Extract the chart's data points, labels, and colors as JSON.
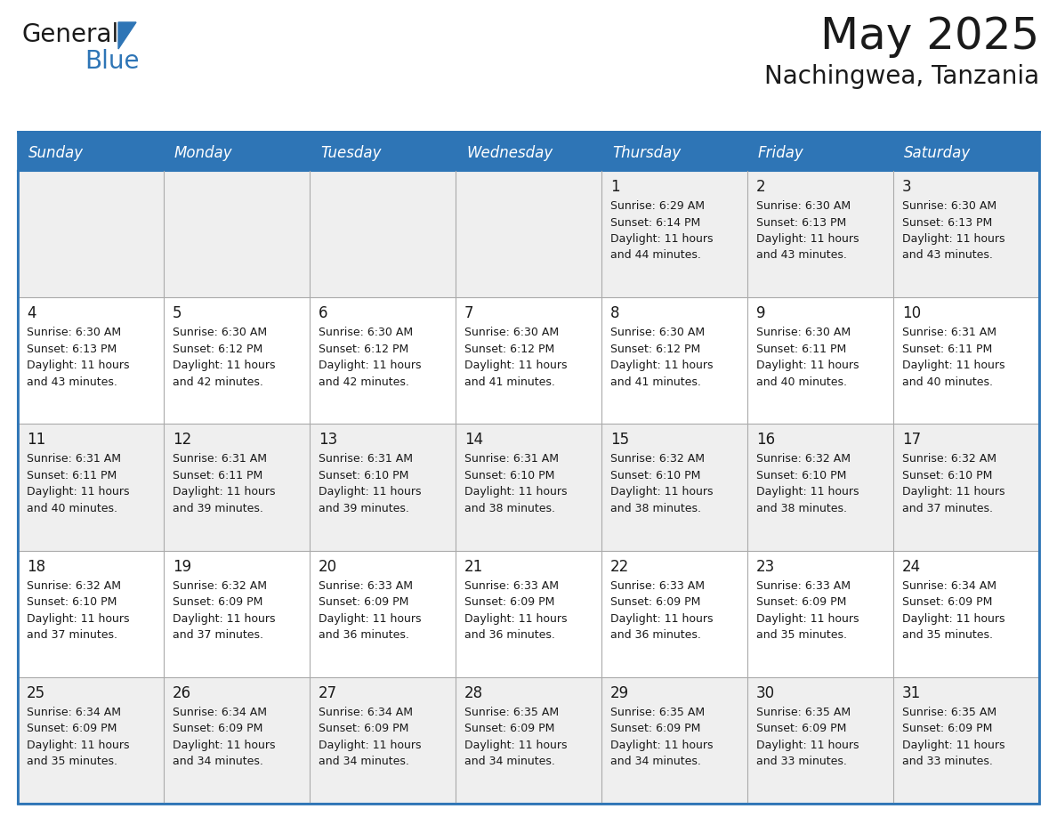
{
  "title": "May 2025",
  "subtitle": "Nachingwea, Tanzania",
  "header_bg": "#2E75B6",
  "header_text_color": "#FFFFFF",
  "cell_bg_row0": "#EFEFEF",
  "cell_bg_row1": "#FFFFFF",
  "cell_bg_row2": "#EFEFEF",
  "cell_bg_row3": "#FFFFFF",
  "cell_bg_row4": "#EFEFEF",
  "cell_border_color": "#2E75B6",
  "grid_line_color": "#AAAAAA",
  "day_headers": [
    "Sunday",
    "Monday",
    "Tuesday",
    "Wednesday",
    "Thursday",
    "Friday",
    "Saturday"
  ],
  "title_color": "#1a1a1a",
  "subtitle_color": "#1a1a1a",
  "day_number_color": "#1a1a1a",
  "cell_text_color": "#1a1a1a",
  "calendar": [
    [
      {
        "day": null,
        "sunrise": null,
        "sunset": null,
        "daylight_h": null,
        "daylight_m": null
      },
      {
        "day": null,
        "sunrise": null,
        "sunset": null,
        "daylight_h": null,
        "daylight_m": null
      },
      {
        "day": null,
        "sunrise": null,
        "sunset": null,
        "daylight_h": null,
        "daylight_m": null
      },
      {
        "day": null,
        "sunrise": null,
        "sunset": null,
        "daylight_h": null,
        "daylight_m": null
      },
      {
        "day": 1,
        "sunrise": "6:29 AM",
        "sunset": "6:14 PM",
        "daylight_h": "11 hours",
        "daylight_m": "44 minutes."
      },
      {
        "day": 2,
        "sunrise": "6:30 AM",
        "sunset": "6:13 PM",
        "daylight_h": "11 hours",
        "daylight_m": "43 minutes."
      },
      {
        "day": 3,
        "sunrise": "6:30 AM",
        "sunset": "6:13 PM",
        "daylight_h": "11 hours",
        "daylight_m": "43 minutes."
      }
    ],
    [
      {
        "day": 4,
        "sunrise": "6:30 AM",
        "sunset": "6:13 PM",
        "daylight_h": "11 hours",
        "daylight_m": "43 minutes."
      },
      {
        "day": 5,
        "sunrise": "6:30 AM",
        "sunset": "6:12 PM",
        "daylight_h": "11 hours",
        "daylight_m": "42 minutes."
      },
      {
        "day": 6,
        "sunrise": "6:30 AM",
        "sunset": "6:12 PM",
        "daylight_h": "11 hours",
        "daylight_m": "42 minutes."
      },
      {
        "day": 7,
        "sunrise": "6:30 AM",
        "sunset": "6:12 PM",
        "daylight_h": "11 hours",
        "daylight_m": "41 minutes."
      },
      {
        "day": 8,
        "sunrise": "6:30 AM",
        "sunset": "6:12 PM",
        "daylight_h": "11 hours",
        "daylight_m": "41 minutes."
      },
      {
        "day": 9,
        "sunrise": "6:30 AM",
        "sunset": "6:11 PM",
        "daylight_h": "11 hours",
        "daylight_m": "40 minutes."
      },
      {
        "day": 10,
        "sunrise": "6:31 AM",
        "sunset": "6:11 PM",
        "daylight_h": "11 hours",
        "daylight_m": "40 minutes."
      }
    ],
    [
      {
        "day": 11,
        "sunrise": "6:31 AM",
        "sunset": "6:11 PM",
        "daylight_h": "11 hours",
        "daylight_m": "40 minutes."
      },
      {
        "day": 12,
        "sunrise": "6:31 AM",
        "sunset": "6:11 PM",
        "daylight_h": "11 hours",
        "daylight_m": "39 minutes."
      },
      {
        "day": 13,
        "sunrise": "6:31 AM",
        "sunset": "6:10 PM",
        "daylight_h": "11 hours",
        "daylight_m": "39 minutes."
      },
      {
        "day": 14,
        "sunrise": "6:31 AM",
        "sunset": "6:10 PM",
        "daylight_h": "11 hours",
        "daylight_m": "38 minutes."
      },
      {
        "day": 15,
        "sunrise": "6:32 AM",
        "sunset": "6:10 PM",
        "daylight_h": "11 hours",
        "daylight_m": "38 minutes."
      },
      {
        "day": 16,
        "sunrise": "6:32 AM",
        "sunset": "6:10 PM",
        "daylight_h": "11 hours",
        "daylight_m": "38 minutes."
      },
      {
        "day": 17,
        "sunrise": "6:32 AM",
        "sunset": "6:10 PM",
        "daylight_h": "11 hours",
        "daylight_m": "37 minutes."
      }
    ],
    [
      {
        "day": 18,
        "sunrise": "6:32 AM",
        "sunset": "6:10 PM",
        "daylight_h": "11 hours",
        "daylight_m": "37 minutes."
      },
      {
        "day": 19,
        "sunrise": "6:32 AM",
        "sunset": "6:09 PM",
        "daylight_h": "11 hours",
        "daylight_m": "37 minutes."
      },
      {
        "day": 20,
        "sunrise": "6:33 AM",
        "sunset": "6:09 PM",
        "daylight_h": "11 hours",
        "daylight_m": "36 minutes."
      },
      {
        "day": 21,
        "sunrise": "6:33 AM",
        "sunset": "6:09 PM",
        "daylight_h": "11 hours",
        "daylight_m": "36 minutes."
      },
      {
        "day": 22,
        "sunrise": "6:33 AM",
        "sunset": "6:09 PM",
        "daylight_h": "11 hours",
        "daylight_m": "36 minutes."
      },
      {
        "day": 23,
        "sunrise": "6:33 AM",
        "sunset": "6:09 PM",
        "daylight_h": "11 hours",
        "daylight_m": "35 minutes."
      },
      {
        "day": 24,
        "sunrise": "6:34 AM",
        "sunset": "6:09 PM",
        "daylight_h": "11 hours",
        "daylight_m": "35 minutes."
      }
    ],
    [
      {
        "day": 25,
        "sunrise": "6:34 AM",
        "sunset": "6:09 PM",
        "daylight_h": "11 hours",
        "daylight_m": "35 minutes."
      },
      {
        "day": 26,
        "sunrise": "6:34 AM",
        "sunset": "6:09 PM",
        "daylight_h": "11 hours",
        "daylight_m": "34 minutes."
      },
      {
        "day": 27,
        "sunrise": "6:34 AM",
        "sunset": "6:09 PM",
        "daylight_h": "11 hours",
        "daylight_m": "34 minutes."
      },
      {
        "day": 28,
        "sunrise": "6:35 AM",
        "sunset": "6:09 PM",
        "daylight_h": "11 hours",
        "daylight_m": "34 minutes."
      },
      {
        "day": 29,
        "sunrise": "6:35 AM",
        "sunset": "6:09 PM",
        "daylight_h": "11 hours",
        "daylight_m": "34 minutes."
      },
      {
        "day": 30,
        "sunrise": "6:35 AM",
        "sunset": "6:09 PM",
        "daylight_h": "11 hours",
        "daylight_m": "33 minutes."
      },
      {
        "day": 31,
        "sunrise": "6:35 AM",
        "sunset": "6:09 PM",
        "daylight_h": "11 hours",
        "daylight_m": "33 minutes."
      }
    ]
  ],
  "row_bg_colors": [
    "#EFEFEF",
    "#FFFFFF",
    "#EFEFEF",
    "#FFFFFF",
    "#EFEFEF"
  ]
}
